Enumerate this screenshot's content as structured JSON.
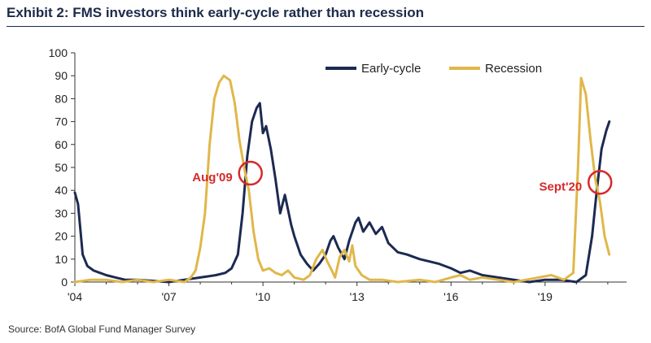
{
  "header": {
    "title": "Exhibit 2: FMS investors think early-cycle rather than recession"
  },
  "footer": {
    "source": "Source: BofA Global Fund Manager Survey"
  },
  "colors": {
    "early_cycle": "#1c2a52",
    "recession": "#e0b74a",
    "annotation": "#d6282b",
    "axis": "#333333"
  },
  "chart_data": {
    "type": "line",
    "title": "Exhibit 2: FMS investors think early-cycle rather than recession",
    "xlabel": "",
    "ylabel": "",
    "xlim": [
      2004.0,
      2021.6
    ],
    "ylim": [
      0,
      100
    ],
    "y_ticks": [
      0,
      10,
      20,
      30,
      40,
      50,
      60,
      70,
      80,
      90,
      100
    ],
    "x_ticks": [
      {
        "value": 2004,
        "label": "'04"
      },
      {
        "value": 2007,
        "label": "'07"
      },
      {
        "value": 2010,
        "label": "'10"
      },
      {
        "value": 2013,
        "label": "'13"
      },
      {
        "value": 2016,
        "label": "'16"
      },
      {
        "value": 2019,
        "label": "'19"
      }
    ],
    "legend": {
      "placement": "top-right"
    },
    "series": [
      {
        "name": "Early-cycle",
        "color": "#1c2a52",
        "points": [
          [
            2004.0,
            39
          ],
          [
            2004.1,
            34
          ],
          [
            2004.25,
            12
          ],
          [
            2004.4,
            7
          ],
          [
            2004.6,
            5
          ],
          [
            2004.8,
            4
          ],
          [
            2005.0,
            3
          ],
          [
            2005.3,
            2
          ],
          [
            2005.6,
            1
          ],
          [
            2006.0,
            1
          ],
          [
            2006.5,
            0.5
          ],
          [
            2007.0,
            0
          ],
          [
            2007.5,
            1
          ],
          [
            2008.0,
            2
          ],
          [
            2008.5,
            3
          ],
          [
            2008.8,
            4
          ],
          [
            2009.0,
            6
          ],
          [
            2009.2,
            12
          ],
          [
            2009.35,
            30
          ],
          [
            2009.5,
            55
          ],
          [
            2009.65,
            70
          ],
          [
            2009.8,
            76
          ],
          [
            2009.9,
            78
          ],
          [
            2010.0,
            65
          ],
          [
            2010.1,
            68
          ],
          [
            2010.25,
            58
          ],
          [
            2010.4,
            45
          ],
          [
            2010.55,
            30
          ],
          [
            2010.7,
            38
          ],
          [
            2010.9,
            25
          ],
          [
            2011.0,
            20
          ],
          [
            2011.2,
            12
          ],
          [
            2011.4,
            8
          ],
          [
            2011.6,
            5
          ],
          [
            2011.8,
            8
          ],
          [
            2012.0,
            12
          ],
          [
            2012.15,
            18
          ],
          [
            2012.25,
            20
          ],
          [
            2012.4,
            15
          ],
          [
            2012.6,
            10
          ],
          [
            2012.75,
            18
          ],
          [
            2012.95,
            26
          ],
          [
            2013.05,
            28
          ],
          [
            2013.2,
            22
          ],
          [
            2013.4,
            26
          ],
          [
            2013.6,
            21
          ],
          [
            2013.8,
            24
          ],
          [
            2014.0,
            17
          ],
          [
            2014.3,
            13
          ],
          [
            2014.6,
            12
          ],
          [
            2015.0,
            10
          ],
          [
            2015.3,
            9
          ],
          [
            2015.6,
            8
          ],
          [
            2016.0,
            6
          ],
          [
            2016.3,
            4
          ],
          [
            2016.6,
            5
          ],
          [
            2017.0,
            3
          ],
          [
            2017.5,
            2
          ],
          [
            2018.0,
            1
          ],
          [
            2018.5,
            0
          ],
          [
            2019.0,
            1
          ],
          [
            2019.5,
            1
          ],
          [
            2020.0,
            0
          ],
          [
            2020.3,
            3
          ],
          [
            2020.5,
            20
          ],
          [
            2020.65,
            40
          ],
          [
            2020.8,
            58
          ],
          [
            2020.95,
            66
          ],
          [
            2021.05,
            70
          ]
        ]
      },
      {
        "name": "Recession",
        "color": "#e0b74a",
        "points": [
          [
            2004.0,
            0
          ],
          [
            2004.5,
            1
          ],
          [
            2005.0,
            1
          ],
          [
            2005.5,
            0
          ],
          [
            2006.0,
            1
          ],
          [
            2006.5,
            0
          ],
          [
            2007.0,
            1
          ],
          [
            2007.5,
            0
          ],
          [
            2007.7,
            2
          ],
          [
            2007.85,
            5
          ],
          [
            2008.0,
            15
          ],
          [
            2008.15,
            30
          ],
          [
            2008.3,
            60
          ],
          [
            2008.45,
            80
          ],
          [
            2008.6,
            87
          ],
          [
            2008.75,
            90
          ],
          [
            2008.95,
            88
          ],
          [
            2009.1,
            78
          ],
          [
            2009.25,
            62
          ],
          [
            2009.4,
            50
          ],
          [
            2009.55,
            40
          ],
          [
            2009.7,
            22
          ],
          [
            2009.85,
            10
          ],
          [
            2010.0,
            5
          ],
          [
            2010.2,
            6
          ],
          [
            2010.4,
            4
          ],
          [
            2010.6,
            3
          ],
          [
            2010.8,
            5
          ],
          [
            2011.0,
            2
          ],
          [
            2011.3,
            1
          ],
          [
            2011.5,
            3
          ],
          [
            2011.7,
            10
          ],
          [
            2011.9,
            14
          ],
          [
            2012.05,
            9
          ],
          [
            2012.2,
            5
          ],
          [
            2012.3,
            2
          ],
          [
            2012.45,
            11
          ],
          [
            2012.6,
            14
          ],
          [
            2012.75,
            9
          ],
          [
            2012.85,
            16
          ],
          [
            2012.95,
            7
          ],
          [
            2013.15,
            3
          ],
          [
            2013.4,
            1
          ],
          [
            2013.8,
            1
          ],
          [
            2014.3,
            0
          ],
          [
            2015.0,
            1
          ],
          [
            2015.5,
            0
          ],
          [
            2016.0,
            2
          ],
          [
            2016.3,
            3
          ],
          [
            2016.6,
            1
          ],
          [
            2017.0,
            2
          ],
          [
            2017.5,
            1
          ],
          [
            2018.0,
            0
          ],
          [
            2018.4,
            1
          ],
          [
            2018.8,
            2
          ],
          [
            2019.2,
            3
          ],
          [
            2019.6,
            1
          ],
          [
            2019.9,
            4
          ],
          [
            2020.05,
            50
          ],
          [
            2020.15,
            89
          ],
          [
            2020.3,
            82
          ],
          [
            2020.45,
            62
          ],
          [
            2020.6,
            45
          ],
          [
            2020.75,
            35
          ],
          [
            2020.9,
            20
          ],
          [
            2021.05,
            12
          ]
        ]
      }
    ],
    "annotations": [
      {
        "label": "Aug'09",
        "x": 2009.6,
        "y": 47.5
      },
      {
        "label": "Sept'20",
        "x": 2020.75,
        "y": 43.5
      }
    ]
  }
}
